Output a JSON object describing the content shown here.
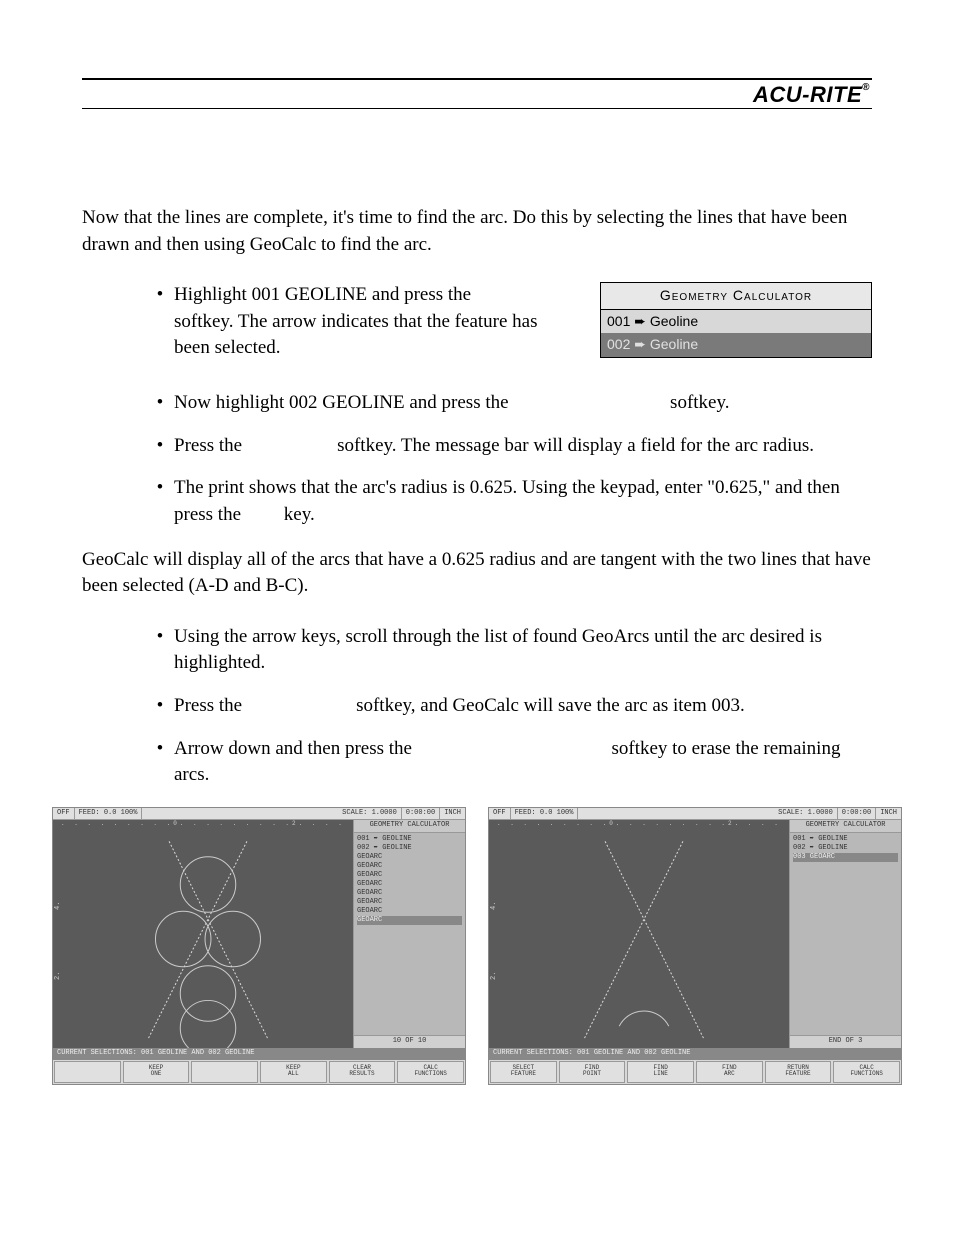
{
  "brand": "ACU-RITE",
  "intro_para": "Now that the lines are complete, it's time to find the arc. Do this by selecting the lines that have been drawn and then using GeoCalc to find the arc.",
  "bullets1": [
    "Highlight 001 GEOLINE and press the                     softkey. The arrow indicates that the feature has been selected.",
    "Now highlight 002 GEOLINE and press the                                  softkey.",
    "Press the                    softkey. The message bar will display a field for the arc radius.",
    "The print shows that the arc's radius is 0.625. Using the keypad, enter \"0.625,\" and then press the         key."
  ],
  "calc_box": {
    "title": "Geometry Calculator",
    "row1": "001 ➨ Geoline",
    "row2": "002 ➨ Geoline"
  },
  "mid_para": "GeoCalc will display all of the arcs that have a 0.625 radius and are tangent with the two lines that have been selected (A-D and B-C).",
  "bullets2": [
    "Using the arrow keys, scroll through the list of found GeoArcs until the arc desired is highlighted.",
    "Press the                        softkey, and GeoCalc will save the arc as item 003.",
    "Arrow down and then press the                                          softkey to erase the remaining arcs."
  ],
  "screenshot_left": {
    "topbar": {
      "off": "OFF",
      "feed": "FEED:",
      "feedval": "0.0 100%",
      "scale": "SCALE: 1.0000",
      "time": "0:00:00",
      "unit": "INCH"
    },
    "side_title": "GEOMETRY CALCULATOR",
    "side_items": [
      "001 ➨ GEOLINE",
      "002 ➨ GEOLINE",
      "      GEOARC",
      "      GEOARC",
      "      GEOARC",
      "      GEOARC",
      "      GEOARC",
      "      GEOARC",
      "      GEOARC",
      "      GEOARC"
    ],
    "side_highlight_index": 9,
    "side_footer": "10 OF 10",
    "statusbar": "CURRENT SELECTIONS: 001 GEOLINE AND 002 GEOLINE",
    "softkeys": [
      "",
      "KEEP\nONE",
      "",
      "KEEP\nALL",
      "CLEAR\nRESULTS",
      "CALC\nFUNCTIONS"
    ]
  },
  "screenshot_right": {
    "topbar": {
      "off": "OFF",
      "feed": "FEED:",
      "feedval": "0.0 100%",
      "scale": "SCALE: 1.0000",
      "time": "0:00:00",
      "unit": "INCH"
    },
    "side_title": "GEOMETRY CALCULATOR",
    "side_items": [
      "001 ➨ GEOLINE",
      "002 ➨ GEOLINE",
      "003   GEOARC"
    ],
    "side_highlight_index": 2,
    "side_footer": "END OF 3",
    "statusbar": "CURRENT SELECTIONS: 001 GEOLINE AND 002 GEOLINE",
    "softkeys": [
      "SELECT\nFEATURE",
      "FIND\nPOINT",
      "FIND\nLINE",
      "FIND\nARC",
      "RETURN\nFEATURE",
      "CALC\nFUNCTIONS"
    ]
  },
  "colors": {
    "text": "#000000",
    "bg": "#ffffff",
    "screenshot_canvas": "#5a5a5a",
    "screenshot_panel": "#d8d8d8",
    "highlight_bg": "#888888"
  }
}
